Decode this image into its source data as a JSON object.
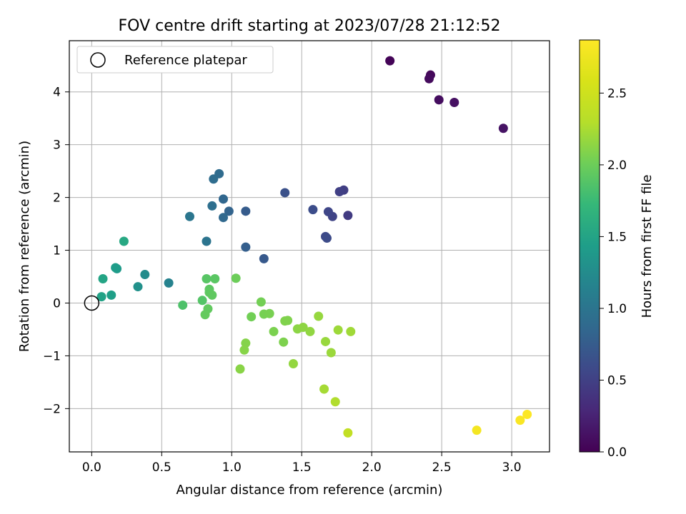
{
  "chart_data": {
    "type": "scatter",
    "title": "FOV centre drift starting at 2023/07/28 21:12:52",
    "xlabel": "Angular distance from reference (arcmin)",
    "ylabel": "Rotation from reference (arcmin)",
    "xlim": [
      -0.16,
      3.27
    ],
    "ylim": [
      -2.82,
      4.97
    ],
    "xticks": [
      0.0,
      0.5,
      1.0,
      1.5,
      2.0,
      2.5,
      3.0
    ],
    "xtick_labels": [
      "0.0",
      "0.5",
      "1.0",
      "1.5",
      "2.0",
      "2.5",
      "3.0"
    ],
    "yticks": [
      -2,
      -1,
      0,
      1,
      2,
      3,
      4
    ],
    "ytick_labels": [
      "−2",
      "−1",
      "0",
      "1",
      "2",
      "3",
      "4"
    ],
    "grid": true,
    "legend": {
      "position": "top-left",
      "entries": [
        "Reference platepar"
      ]
    },
    "reference_point": {
      "x": 0.0,
      "y": 0.0,
      "marker": "open-circle",
      "color": "#000000"
    },
    "colorbar": {
      "label": "Hours from first FF file",
      "colormap": "viridis",
      "range": [
        0.0,
        2.87
      ],
      "ticks": [
        0.0,
        0.5,
        1.0,
        1.5,
        2.0,
        2.5
      ],
      "tick_labels": [
        "0.0",
        "0.5",
        "1.0",
        "1.5",
        "2.0",
        "2.5"
      ]
    },
    "points": [
      {
        "x": 2.13,
        "y": 4.59,
        "t": 0.02
      },
      {
        "x": 2.42,
        "y": 4.32,
        "t": 0.05
      },
      {
        "x": 2.41,
        "y": 4.25,
        "t": 0.07
      },
      {
        "x": 2.48,
        "y": 3.85,
        "t": 0.09
      },
      {
        "x": 2.59,
        "y": 3.8,
        "t": 0.11
      },
      {
        "x": 2.94,
        "y": 3.31,
        "t": 0.13
      },
      {
        "x": 1.83,
        "y": 1.66,
        "t": 0.45
      },
      {
        "x": 1.8,
        "y": 2.14,
        "t": 0.48
      },
      {
        "x": 1.77,
        "y": 2.11,
        "t": 0.5
      },
      {
        "x": 1.72,
        "y": 1.64,
        "t": 0.53
      },
      {
        "x": 1.69,
        "y": 1.73,
        "t": 0.55
      },
      {
        "x": 1.67,
        "y": 1.26,
        "t": 0.57
      },
      {
        "x": 1.68,
        "y": 1.23,
        "t": 0.59
      },
      {
        "x": 1.58,
        "y": 1.77,
        "t": 0.61
      },
      {
        "x": 1.38,
        "y": 2.09,
        "t": 0.65
      },
      {
        "x": 1.23,
        "y": 0.84,
        "t": 0.72
      },
      {
        "x": 1.1,
        "y": 1.74,
        "t": 0.75
      },
      {
        "x": 1.1,
        "y": 1.06,
        "t": 0.78
      },
      {
        "x": 0.98,
        "y": 1.74,
        "t": 0.82
      },
      {
        "x": 0.94,
        "y": 1.97,
        "t": 0.85
      },
      {
        "x": 0.94,
        "y": 1.62,
        "t": 0.87
      },
      {
        "x": 0.91,
        "y": 2.45,
        "t": 0.9
      },
      {
        "x": 0.87,
        "y": 2.35,
        "t": 0.92
      },
      {
        "x": 0.86,
        "y": 1.84,
        "t": 0.94
      },
      {
        "x": 0.82,
        "y": 1.17,
        "t": 0.99
      },
      {
        "x": 0.7,
        "y": 1.64,
        "t": 1.02
      },
      {
        "x": 0.55,
        "y": 0.38,
        "t": 1.15
      },
      {
        "x": 0.38,
        "y": 0.54,
        "t": 1.25
      },
      {
        "x": 0.33,
        "y": 0.31,
        "t": 1.3
      },
      {
        "x": 0.23,
        "y": 1.17,
        "t": 1.55
      },
      {
        "x": 0.18,
        "y": 0.65,
        "t": 1.4
      },
      {
        "x": 0.17,
        "y": 0.67,
        "t": 1.42
      },
      {
        "x": 0.14,
        "y": 0.15,
        "t": 1.45
      },
      {
        "x": 0.08,
        "y": 0.46,
        "t": 1.5
      },
      {
        "x": 0.07,
        "y": 0.12,
        "t": 1.48
      },
      {
        "x": 0.65,
        "y": -0.04,
        "t": 1.85
      },
      {
        "x": 0.79,
        "y": 0.05,
        "t": 1.88
      },
      {
        "x": 0.82,
        "y": 0.46,
        "t": 1.9
      },
      {
        "x": 0.88,
        "y": 0.46,
        "t": 1.91
      },
      {
        "x": 0.84,
        "y": 0.26,
        "t": 1.92
      },
      {
        "x": 0.84,
        "y": 0.2,
        "t": 1.93
      },
      {
        "x": 0.86,
        "y": 0.15,
        "t": 1.94
      },
      {
        "x": 0.83,
        "y": -0.11,
        "t": 1.95
      },
      {
        "x": 0.81,
        "y": -0.22,
        "t": 1.96
      },
      {
        "x": 1.03,
        "y": 0.47,
        "t": 2.0
      },
      {
        "x": 1.14,
        "y": -0.26,
        "t": 2.02
      },
      {
        "x": 1.21,
        "y": 0.02,
        "t": 2.03
      },
      {
        "x": 1.23,
        "y": -0.21,
        "t": 2.04
      },
      {
        "x": 1.27,
        "y": -0.2,
        "t": 2.05
      },
      {
        "x": 1.3,
        "y": -0.54,
        "t": 2.06
      },
      {
        "x": 1.37,
        "y": -0.74,
        "t": 2.07
      },
      {
        "x": 1.38,
        "y": -0.34,
        "t": 2.08
      },
      {
        "x": 1.4,
        "y": -0.33,
        "t": 2.08
      },
      {
        "x": 1.1,
        "y": -0.76,
        "t": 2.1
      },
      {
        "x": 1.09,
        "y": -0.89,
        "t": 2.11
      },
      {
        "x": 1.06,
        "y": -1.25,
        "t": 2.12
      },
      {
        "x": 1.47,
        "y": -0.49,
        "t": 2.13
      },
      {
        "x": 1.51,
        "y": -0.46,
        "t": 2.14
      },
      {
        "x": 1.56,
        "y": -0.54,
        "t": 2.15
      },
      {
        "x": 1.44,
        "y": -1.15,
        "t": 2.16
      },
      {
        "x": 1.62,
        "y": -0.25,
        "t": 2.17
      },
      {
        "x": 1.67,
        "y": -0.73,
        "t": 2.18
      },
      {
        "x": 1.71,
        "y": -0.94,
        "t": 2.19
      },
      {
        "x": 1.76,
        "y": -0.51,
        "t": 2.2
      },
      {
        "x": 1.85,
        "y": -0.54,
        "t": 2.21
      },
      {
        "x": 1.66,
        "y": -1.63,
        "t": 2.23
      },
      {
        "x": 1.74,
        "y": -1.87,
        "t": 2.28
      },
      {
        "x": 1.83,
        "y": -2.46,
        "t": 2.4
      },
      {
        "x": 2.75,
        "y": -2.41,
        "t": 2.8
      },
      {
        "x": 3.06,
        "y": -2.22,
        "t": 2.84
      },
      {
        "x": 3.11,
        "y": -2.11,
        "t": 2.86
      }
    ]
  }
}
